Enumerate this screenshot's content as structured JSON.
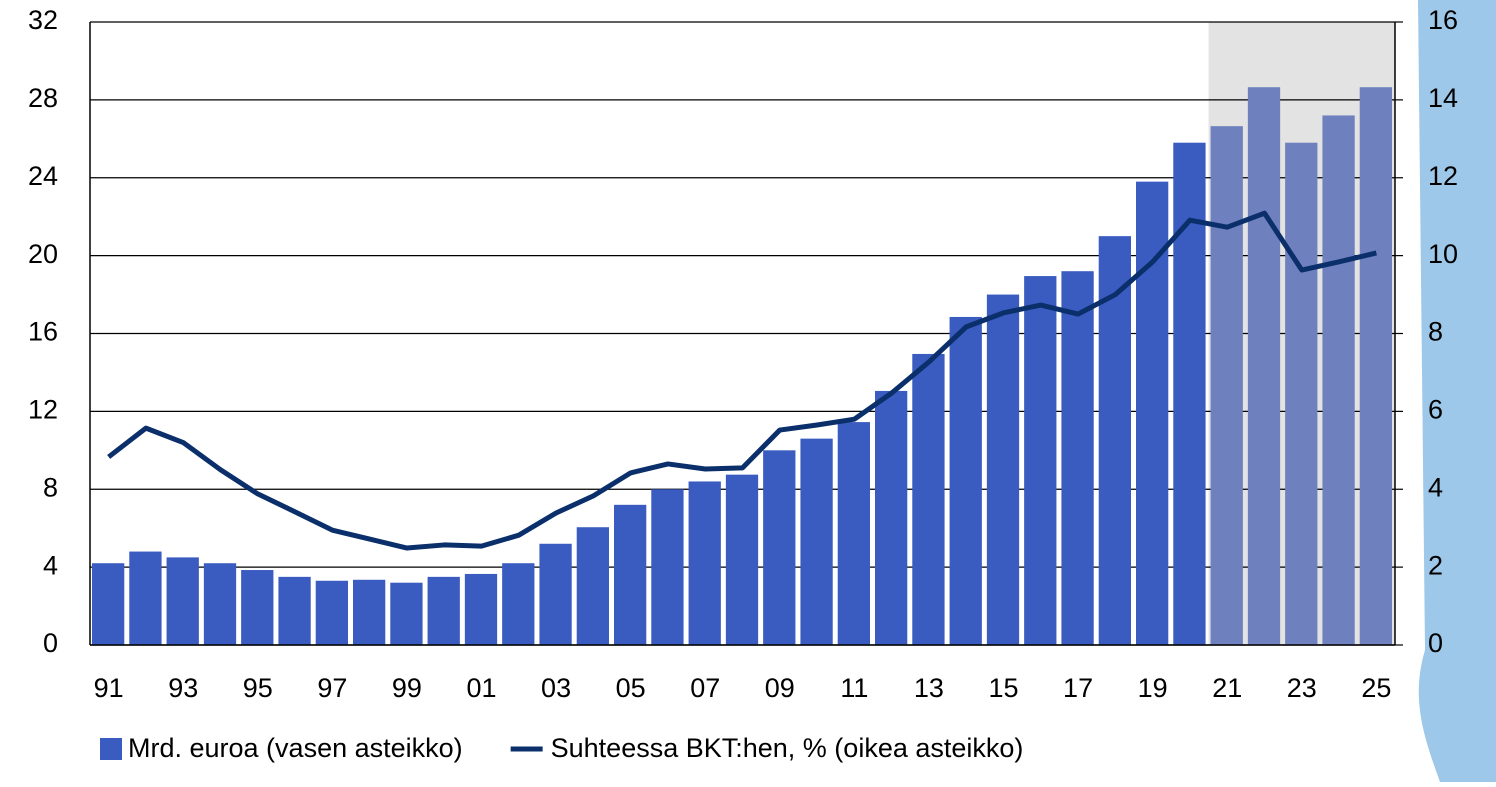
{
  "chart_data": {
    "type": "combo",
    "categories": [
      "91",
      null,
      "93",
      null,
      "95",
      null,
      "97",
      null,
      "99",
      null,
      "01",
      null,
      "03",
      null,
      "05",
      null,
      "07",
      null,
      "09",
      null,
      "11",
      null,
      "13",
      null,
      "15",
      null,
      "17",
      null,
      "19",
      null,
      "21",
      null,
      "23",
      null,
      "25"
    ],
    "series": [
      {
        "name": "Mrd. euroa (vasen asteikko)",
        "type": "bar",
        "color": "#3a5bbf",
        "colors": [
          "#3a5bbf",
          "#3a5bbf",
          "#3a5bbf",
          "#3a5bbf",
          "#3a5bbf",
          "#3a5bbf",
          "#3a5bbf",
          "#3a5bbf",
          "#3a5bbf",
          "#3a5bbf",
          "#3a5bbf",
          "#3a5bbf",
          "#3a5bbf",
          "#3a5bbf",
          "#3a5bbf",
          "#3a5bbf",
          "#3a5bbf",
          "#3a5bbf",
          "#3a5bbf",
          "#3a5bbf",
          "#3a5bbf",
          "#3a5bbf",
          "#3a5bbf",
          "#3a5bbf",
          "#3a5bbf",
          "#3a5bbf",
          "#3a5bbf",
          "#3a5bbf",
          "#3a5bbf",
          "#3a5bbf",
          "#6e80bd",
          "#6e80bd",
          "#6e80bd",
          "#6e80bd",
          "#6e80bd"
        ],
        "values": [
          4.2,
          4.8,
          4.5,
          4.2,
          3.85,
          3.5,
          3.3,
          3.35,
          3.2,
          3.5,
          3.65,
          4.2,
          5.2,
          6.05,
          7.2,
          8.0,
          8.4,
          8.75,
          10.0,
          10.6,
          11.45,
          13.05,
          14.95,
          16.85,
          18.0,
          18.95,
          19.2,
          21.0,
          23.8,
          25.8,
          26.65,
          28.65,
          25.8,
          27.2,
          28.65
        ]
      },
      {
        "name": "Suhteessa BKT:hen, % (oikea asteikko)",
        "type": "line",
        "axis": "y2",
        "color": "#0a2f6b",
        "values": [
          4.83,
          5.57,
          5.2,
          4.5,
          3.88,
          3.42,
          2.95,
          2.72,
          2.49,
          2.57,
          2.54,
          2.82,
          3.39,
          3.83,
          4.42,
          4.65,
          4.52,
          4.55,
          5.52,
          5.65,
          5.8,
          6.47,
          7.27,
          8.17,
          8.53,
          8.73,
          8.5,
          9.0,
          9.84,
          10.91,
          10.73,
          11.09,
          9.63,
          9.84,
          10.07
        ]
      }
    ],
    "shaded_range": {
      "from": "21",
      "to": "25",
      "color": "#e3e3e3"
    },
    "ylim": [
      0,
      32
    ],
    "yticks": [
      0,
      4,
      8,
      12,
      16,
      20,
      24,
      28,
      32
    ],
    "y2lim": [
      0,
      16
    ],
    "y2ticks": [
      0,
      2,
      4,
      6,
      8,
      10,
      12,
      14,
      16
    ],
    "grid": true
  }
}
